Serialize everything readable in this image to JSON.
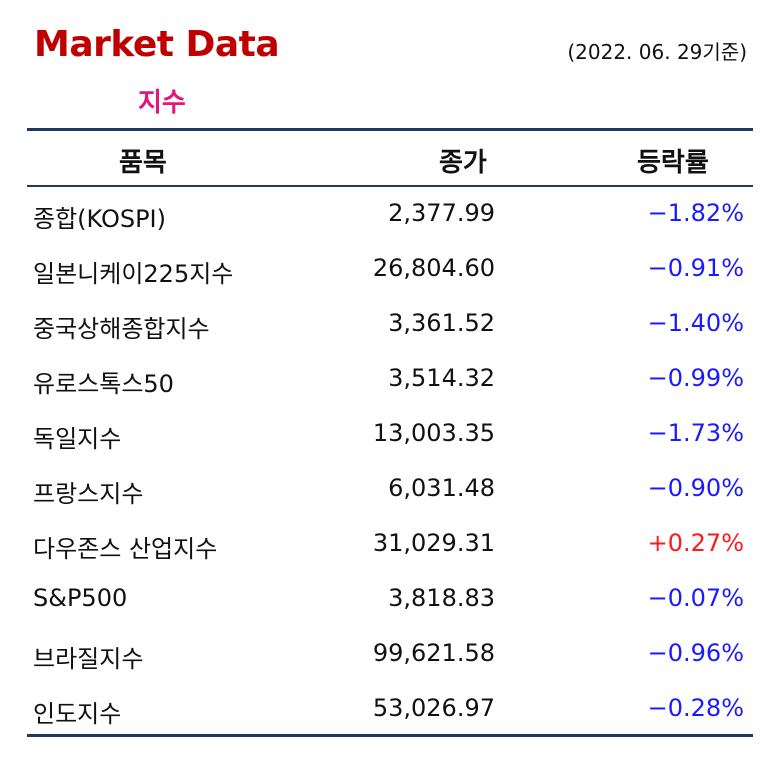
{
  "header": {
    "title": "Market Data",
    "date": "(2022. 06. 29기준)",
    "subtitle": "지수"
  },
  "table": {
    "columns": [
      "품목",
      "종가",
      "등락률"
    ],
    "rows": [
      {
        "name": "종합(KOSPI)",
        "close": "2,377.99",
        "change": "−1.82%",
        "direction": "down"
      },
      {
        "name": "일본니케이225지수",
        "close": "26,804.60",
        "change": "−0.91%",
        "direction": "down"
      },
      {
        "name": "중국상해종합지수",
        "close": "3,361.52",
        "change": "−1.40%",
        "direction": "down"
      },
      {
        "name": "유로스톡스50",
        "close": "3,514.32",
        "change": "−0.99%",
        "direction": "down"
      },
      {
        "name": "독일지수",
        "close": "13,003.35",
        "change": "−1.73%",
        "direction": "down"
      },
      {
        "name": "프랑스지수",
        "close": "6,031.48",
        "change": "−0.90%",
        "direction": "down"
      },
      {
        "name": "다우존스 산업지수",
        "close": "31,029.31",
        "change": "+0.27%",
        "direction": "up"
      },
      {
        "name": "S&P500",
        "close": "3,818.83",
        "change": "−0.07%",
        "direction": "down"
      },
      {
        "name": "브라질지수",
        "close": "99,621.58",
        "change": "−0.96%",
        "direction": "down"
      },
      {
        "name": "인도지수",
        "close": "53,026.97",
        "change": "−0.28%",
        "direction": "down"
      }
    ]
  },
  "colors": {
    "title": "#c00000",
    "subtitle": "#e0177c",
    "rule": "#1f3864",
    "negative": "#1a1aff",
    "positive": "#ff1a1a"
  }
}
